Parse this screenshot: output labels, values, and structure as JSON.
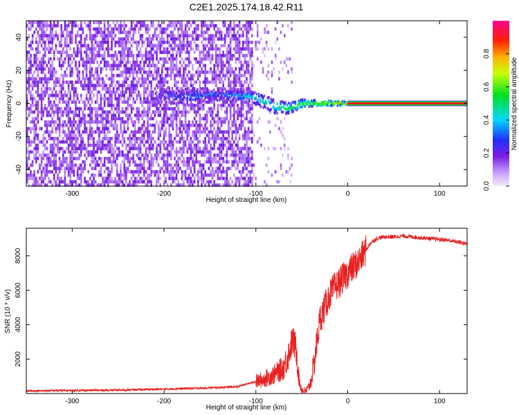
{
  "title": "C2E1.2025.174.18.42.R11",
  "colors": {
    "scatter_point": "#7a1fe0",
    "snr_line": "#e82020",
    "axis": "#000000",
    "background": "#ffffff"
  },
  "chart_data": [
    {
      "type": "heatmap",
      "xlabel": "Height of straight line (km)",
      "ylabel": "Frequency (Hz)",
      "xlim": [
        -350,
        130
      ],
      "ylim": [
        -50,
        50
      ],
      "xticks": [
        -300,
        -200,
        -100,
        0,
        100
      ],
      "yticks": [
        -40,
        -20,
        0,
        20,
        40
      ],
      "colorbar": {
        "label": "Normalized spectral amplitude",
        "range": [
          0.0,
          1.0
        ],
        "ticks": [
          0.0,
          0.2,
          0.4,
          0.6,
          0.8
        ],
        "tick_labels": [
          "0.0",
          "0.2",
          "0.4",
          "0.6",
          "0.8"
        ],
        "colormap": "rainbow (lavender-violet-blue-cyan-green-yellow-red-magenta)"
      },
      "features": {
        "noise_field": {
          "x_range": [
            -350,
            -105
          ],
          "freq_range": [
            -50,
            50
          ],
          "level": 0.1
        },
        "sparse_noise": {
          "x_range": [
            -105,
            -60
          ],
          "freq_range": [
            -50,
            50
          ],
          "level": 0.05
        },
        "signal_band": [
          {
            "x": -210,
            "freq": 5,
            "width": 6,
            "level": 0.2
          },
          {
            "x": -180,
            "freq": 4,
            "width": 7,
            "level": 0.3
          },
          {
            "x": -150,
            "freq": 5,
            "width": 5,
            "level": 0.3
          },
          {
            "x": -120,
            "freq": 5,
            "width": 5,
            "level": 0.35
          },
          {
            "x": -100,
            "freq": 3,
            "width": 5,
            "level": 0.45
          },
          {
            "x": -80,
            "freq": -2,
            "width": 5,
            "level": 0.5
          },
          {
            "x": -65,
            "freq": -3,
            "width": 4,
            "level": 0.55
          },
          {
            "x": -50,
            "freq": 0,
            "width": 3,
            "level": 0.6
          },
          {
            "x": -30,
            "freq": 0,
            "width": 2,
            "level": 0.7
          },
          {
            "x": -10,
            "freq": 0,
            "width": 1.5,
            "level": 0.8
          },
          {
            "x": 0,
            "freq": 0,
            "width": 1.0,
            "level": 0.9
          }
        ],
        "steady_line": {
          "x_range": [
            0,
            130
          ],
          "freq": 0,
          "level": 0.9
        }
      }
    },
    {
      "type": "line",
      "xlabel": "Height of straight line (km)",
      "ylabel": "SNR (10 * v/v)",
      "xlim": [
        -350,
        130
      ],
      "ylim": [
        0,
        9600
      ],
      "xticks": [
        -300,
        -200,
        -100,
        0,
        100
      ],
      "yticks": [
        2000,
        4000,
        6000,
        8000
      ],
      "series": [
        {
          "x": [
            -350,
            -300,
            -250,
            -200,
            -150,
            -120,
            -100,
            -90,
            -80,
            -70,
            -65,
            -60,
            -56,
            -53,
            -50,
            -46,
            -43,
            -40,
            -36,
            -33,
            -30,
            -25,
            -20,
            -15,
            -10,
            -5,
            0,
            5,
            10,
            15,
            20,
            25,
            30,
            35,
            40,
            50,
            60,
            70,
            80,
            90,
            100,
            110,
            120,
            130
          ],
          "y": [
            150,
            180,
            200,
            260,
            330,
            400,
            700,
            850,
            1100,
            1500,
            2200,
            3100,
            2600,
            800,
            200,
            120,
            300,
            700,
            2000,
            3200,
            4400,
            5000,
            5700,
            6100,
            6400,
            6700,
            7000,
            7300,
            7550,
            7900,
            8350,
            8750,
            8950,
            9050,
            9100,
            9100,
            9150,
            9100,
            9050,
            9000,
            8950,
            8900,
            8800,
            8700
          ]
        }
      ]
    }
  ]
}
